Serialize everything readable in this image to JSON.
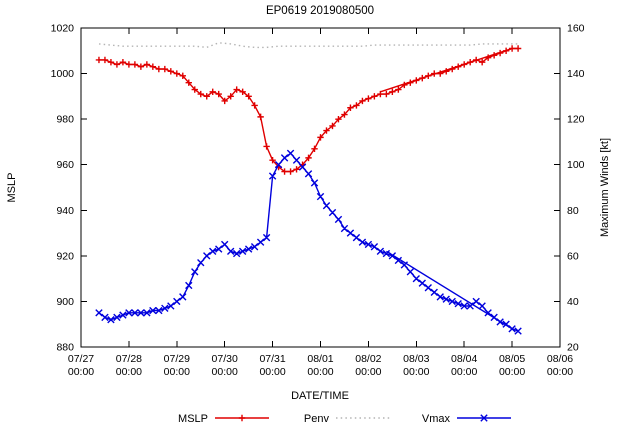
{
  "chart_data": {
    "type": "line",
    "title": "EP0619 2019080500",
    "xlabel": "DATE/TIME",
    "ylabel_left": "MSLP",
    "ylabel_right": "Maximum Winds [kt]",
    "grid": false,
    "legend_position": "bottom-center",
    "xlim": [
      0,
      10
    ],
    "ylim_left": [
      880,
      1020
    ],
    "ylim_right": [
      20,
      160
    ],
    "yticks_left": [
      880,
      900,
      920,
      940,
      960,
      980,
      1000,
      1020
    ],
    "yticks_right": [
      20,
      40,
      60,
      80,
      100,
      120,
      140,
      160
    ],
    "xticks": [
      {
        "pos": 0,
        "date": "07/27",
        "time": "00:00"
      },
      {
        "pos": 1,
        "date": "07/28",
        "time": "00:00"
      },
      {
        "pos": 2,
        "date": "07/29",
        "time": "00:00"
      },
      {
        "pos": 3,
        "date": "07/30",
        "time": "00:00"
      },
      {
        "pos": 4,
        "date": "07/31",
        "time": "00:00"
      },
      {
        "pos": 5,
        "date": "08/01",
        "time": "00:00"
      },
      {
        "pos": 6,
        "date": "08/02",
        "time": "00:00"
      },
      {
        "pos": 7,
        "date": "08/03",
        "time": "00:00"
      },
      {
        "pos": 8,
        "date": "08/04",
        "time": "00:00"
      },
      {
        "pos": 9,
        "date": "08/05",
        "time": "00:00"
      },
      {
        "pos": 10,
        "date": "08/06",
        "time": "00:00"
      }
    ],
    "series": [
      {
        "name": "MSLP",
        "axis": "left",
        "color": "#e00000",
        "style": "solid",
        "marker": "plus",
        "legend": true,
        "x": [
          0.375,
          0.5,
          0.625,
          0.75,
          0.875,
          1,
          1.125,
          1.25,
          1.375,
          1.5,
          1.625,
          1.75,
          1.875,
          2,
          2.125,
          2.25,
          2.375,
          2.5,
          2.625,
          2.75,
          2.875,
          3,
          3.125,
          3.25,
          3.375,
          3.5,
          3.625,
          3.75,
          3.875,
          4,
          4.125,
          4.25,
          4.375,
          4.5,
          4.625,
          4.75,
          4.875,
          5,
          5.125,
          5.25,
          5.375,
          5.5,
          5.625,
          5.75,
          5.875,
          6,
          6.125,
          6.25,
          6.375,
          6.5,
          6.625,
          6.75,
          6.875,
          7,
          7.125,
          7.25,
          7.375,
          7.5,
          7.625,
          7.75,
          7.875,
          8,
          8.125,
          8.25,
          8.375,
          8.5,
          8.625,
          8.75,
          8.875,
          9,
          9.125
        ],
        "y": [
          1006,
          1006,
          1005,
          1004,
          1005,
          1004,
          1004,
          1003,
          1004,
          1003,
          1002,
          1002,
          1001,
          1000,
          999,
          996,
          993,
          991,
          990,
          992,
          991,
          988,
          990,
          993,
          992,
          990,
          986,
          981,
          968,
          962,
          959,
          957,
          957,
          958,
          960,
          963,
          967,
          972,
          975,
          977,
          980,
          982,
          985,
          986,
          988,
          989,
          990,
          991,
          991,
          992,
          993,
          995,
          996,
          997,
          998,
          999,
          1000,
          1000,
          1001,
          1002,
          1003,
          1004,
          1005,
          1006,
          1005,
          1007,
          1008,
          1009,
          1010,
          1011,
          1011
        ]
      },
      {
        "name": "Penv",
        "axis": "left",
        "color": "#b4b4b4",
        "style": "dotted",
        "marker": "none",
        "legend": true,
        "x": [
          0.375,
          0.625,
          0.875,
          1.125,
          1.375,
          1.625,
          1.875,
          2.125,
          2.375,
          2.625,
          2.875,
          3.125,
          3.375,
          3.625,
          3.875,
          4.125,
          4.375,
          4.625,
          4.875,
          5.125,
          5.375,
          5.625,
          5.875,
          6.125,
          6.375,
          6.625,
          6.875,
          7.125,
          7.375,
          7.625,
          7.875,
          8.125,
          8.375,
          8.625,
          8.875,
          9.125
        ],
        "y": [
          1013,
          1012.5,
          1012,
          1012,
          1012,
          1012,
          1012,
          1012,
          1012,
          1011.5,
          1013.5,
          1013,
          1012,
          1011.5,
          1011.5,
          1012,
          1012,
          1012,
          1012,
          1012,
          1012,
          1012,
          1012,
          1012.5,
          1012.5,
          1012.5,
          1012.5,
          1012.5,
          1012.5,
          1012.5,
          1012.5,
          1012.5,
          1013,
          1013,
          1013,
          1013
        ]
      },
      {
        "name": "Vmax",
        "axis": "right",
        "color": "#0000dd",
        "style": "solid",
        "marker": "x",
        "legend": true,
        "x": [
          0.375,
          0.5,
          0.625,
          0.75,
          0.875,
          1,
          1.125,
          1.25,
          1.375,
          1.5,
          1.625,
          1.75,
          1.875,
          2,
          2.125,
          2.25,
          2.375,
          2.5,
          2.625,
          2.75,
          2.875,
          3,
          3.125,
          3.25,
          3.375,
          3.5,
          3.625,
          3.75,
          3.875,
          4,
          4.125,
          4.25,
          4.375,
          4.5,
          4.625,
          4.75,
          4.875,
          5,
          5.125,
          5.25,
          5.375,
          5.5,
          5.625,
          5.75,
          5.875,
          6,
          6.125,
          6.25,
          6.375,
          6.5,
          6.625,
          6.75,
          6.875,
          7,
          7.125,
          7.25,
          7.375,
          7.5,
          7.625,
          7.75,
          7.875,
          8,
          8.125,
          8.25,
          8.375,
          8.5,
          8.625,
          8.75,
          8.875,
          9,
          9.125
        ],
        "y": [
          35,
          33,
          32,
          33,
          34,
          35,
          35,
          35,
          35,
          36,
          36,
          37,
          38,
          40,
          42,
          47,
          53,
          57,
          60,
          62,
          63,
          65,
          62,
          61,
          62,
          63,
          64,
          66,
          68,
          95,
          100,
          103,
          105,
          102,
          99,
          96,
          92,
          86,
          82,
          79,
          76,
          72,
          70,
          68,
          66,
          65,
          64,
          62,
          61,
          60,
          58,
          56,
          53,
          50,
          48,
          46,
          44,
          42,
          41,
          40,
          39,
          38,
          38,
          40,
          38,
          35,
          33,
          31,
          30,
          28,
          27
        ]
      },
      {
        "name": "MSLP trend segment",
        "axis": "left",
        "color": "#e00000",
        "style": "solid",
        "marker": "none",
        "legend": false,
        "x": [
          6.25,
          9.0
        ],
        "y": [
          992,
          1011
        ]
      },
      {
        "name": "Vmax trend segment",
        "axis": "right",
        "color": "#0000dd",
        "style": "solid",
        "marker": "none",
        "legend": false,
        "x": [
          6.375,
          9.0
        ],
        "y": [
          62,
          28
        ]
      }
    ]
  }
}
